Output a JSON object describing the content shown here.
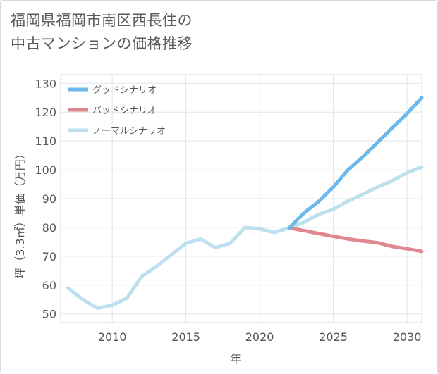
{
  "title": "福岡県福岡市南区西長住の\n中古マンションの価格推移",
  "chart_data": {
    "type": "line",
    "xlabel": "年",
    "ylabel": "坪（3.3㎡）単価（万円）",
    "xlim": [
      2006.5,
      2031
    ],
    "ylim": [
      47,
      133
    ],
    "x_ticks": [
      2010,
      2015,
      2020,
      2025,
      2030
    ],
    "y_ticks": [
      50,
      60,
      70,
      80,
      90,
      100,
      110,
      120,
      130
    ],
    "grid": true,
    "legend_position": "top-left",
    "series": [
      {
        "name": "グッドシナリオ",
        "color": "#6cb8ea",
        "x": [
          2022,
          2023,
          2024,
          2025,
          2026,
          2027,
          2028,
          2029,
          2030,
          2031
        ],
        "values": [
          79.8,
          85,
          89,
          94,
          100,
          104.5,
          109.5,
          114.5,
          119.5,
          125
        ]
      },
      {
        "name": "バッドシナリオ",
        "color": "#e0878f",
        "x": [
          2022,
          2023,
          2024,
          2025,
          2026,
          2027,
          2028,
          2029,
          2030,
          2031
        ],
        "values": [
          79.8,
          78.9,
          77.9,
          76.9,
          76,
          75.3,
          74.7,
          73.4,
          72.6,
          71.7
        ]
      },
      {
        "name": "ノーマルシナリオ",
        "color": "#bde0ee",
        "x": [
          2007,
          2008,
          2009,
          2010,
          2011,
          2012,
          2013,
          2014,
          2015,
          2016,
          2017,
          2018,
          2019,
          2020,
          2021,
          2022,
          2023,
          2024,
          2025,
          2026,
          2027,
          2028,
          2029,
          2030,
          2031
        ],
        "values": [
          59,
          55,
          52,
          53,
          55.5,
          63,
          66.5,
          70.5,
          74.5,
          76,
          73,
          74.5,
          80,
          79.5,
          78.3,
          79.8,
          81.8,
          84.5,
          86.3,
          89.2,
          91.5,
          94,
          96.2,
          99,
          101
        ]
      }
    ]
  }
}
